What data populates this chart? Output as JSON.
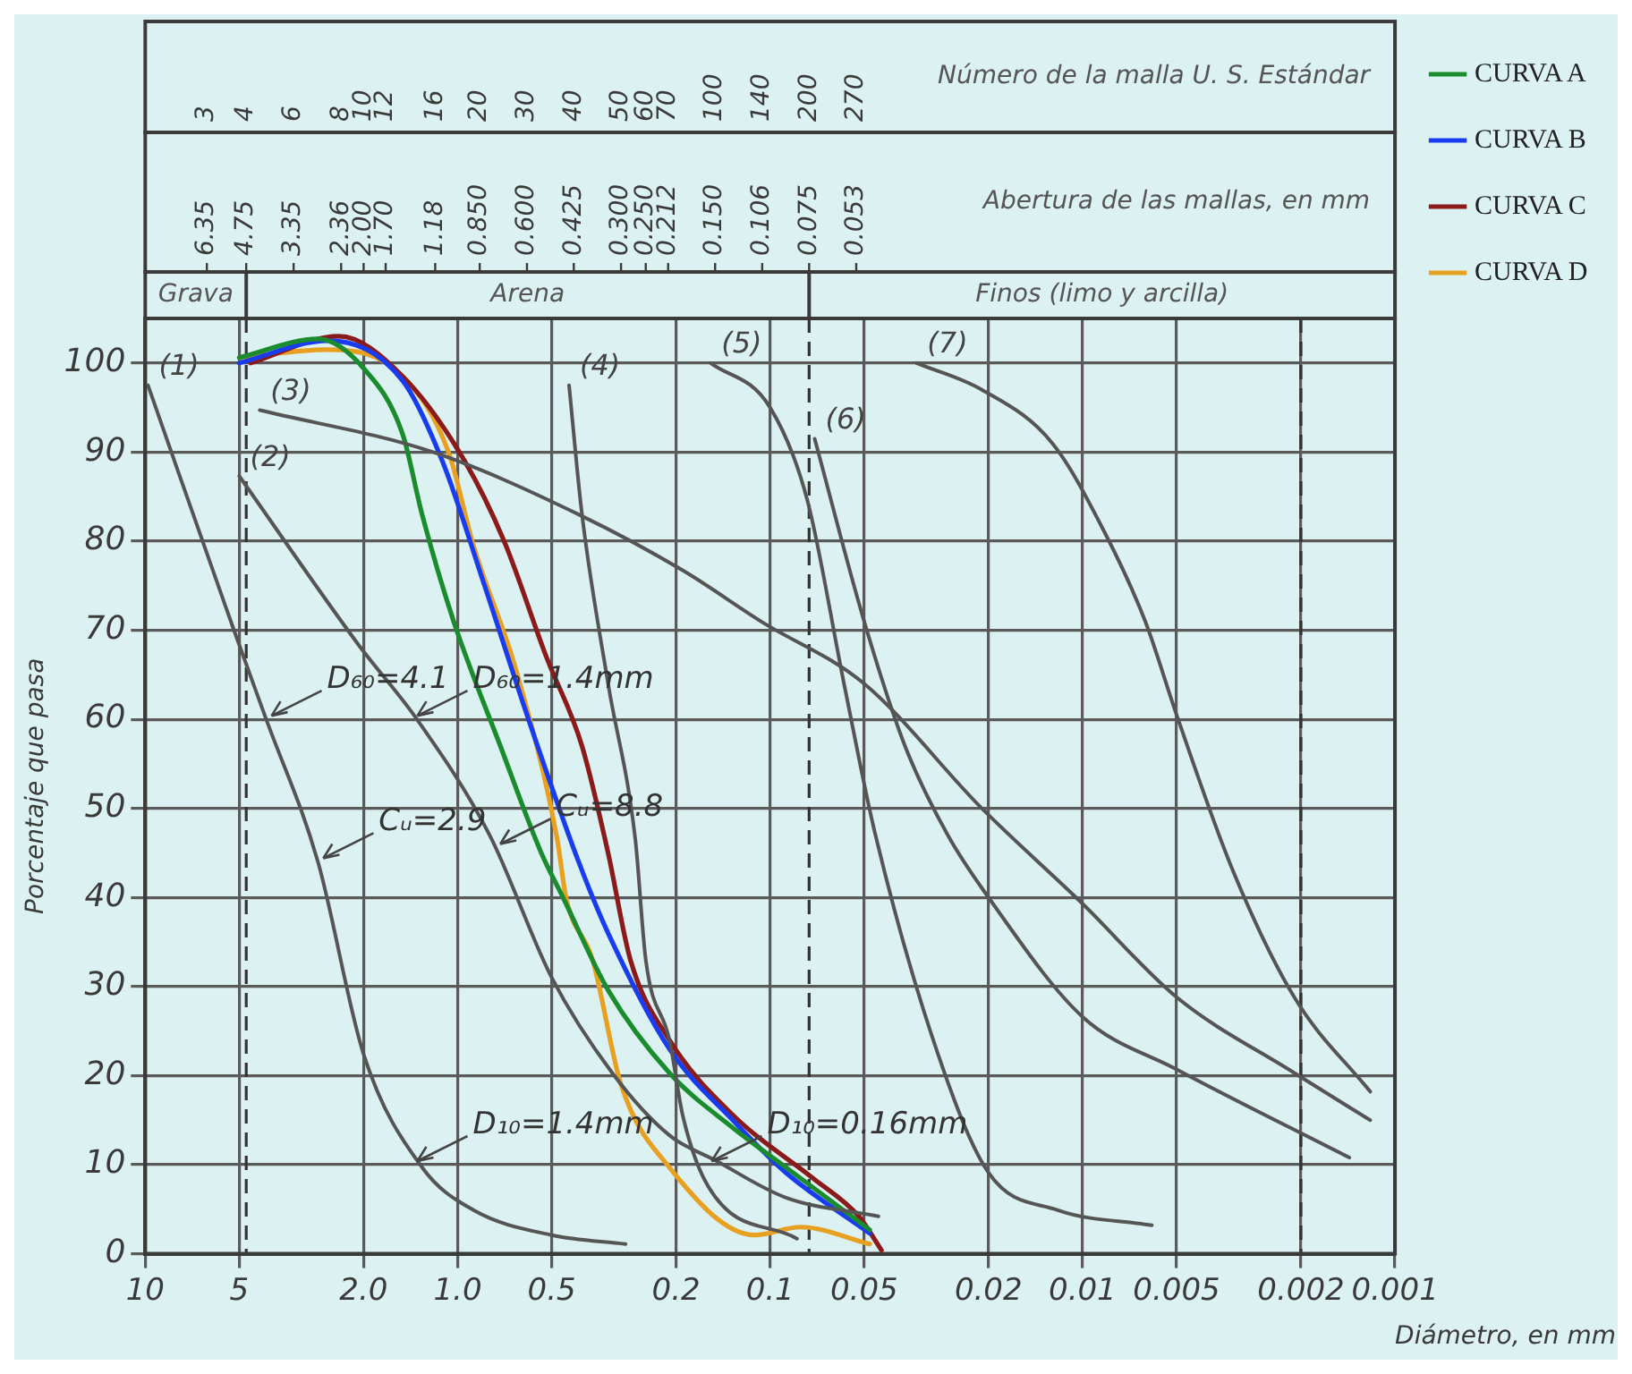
{
  "chart_data": {
    "type": "line",
    "xlabel": "Diámetro, en mm",
    "ylabel": "Porcentaje que pasa",
    "log": "x",
    "grid": true,
    "legend": "right",
    "line_style": "solid",
    "marker": "none",
    "xlim": [
      10,
      0.001
    ],
    "xticks": [
      10,
      5,
      {
        "value": 2,
        "label": "2.0"
      },
      {
        "value": 1,
        "label": "1.0"
      },
      0.5,
      0.2,
      0.1,
      0.05,
      0.02,
      0.01,
      0.005,
      0.002,
      0.001
    ],
    "ylim": [
      0,
      105
    ],
    "yticks": [
      0,
      10,
      20,
      30,
      40,
      50,
      60,
      70,
      80,
      90,
      100
    ],
    "ref_lines": [
      {
        "axis": "x",
        "value": 4.75,
        "line_style": "dashed"
      },
      {
        "axis": "x",
        "value": 0.075,
        "line_style": "dashed"
      },
      {
        "axis": "x",
        "value": 0.002,
        "line_style": "dashed"
      }
    ],
    "annotations": [
      "Grava",
      "Arena",
      "Finos (limo y arcilla)",
      "Número de la malla U. S. Estándar",
      "3",
      "4",
      "6",
      "8",
      "10",
      "12",
      "16",
      "20",
      "30",
      "40",
      "50",
      "60",
      "70",
      "100",
      "140",
      "200",
      "270",
      "Abertura de las mallas, en mm",
      "6.35",
      "4.75",
      "3.35",
      "2.36",
      "2.00",
      "1.70",
      "1.18",
      "0.850",
      "0.600",
      "0.425",
      "0.300",
      "0.250",
      "0.212",
      "0.150",
      "0.106",
      "0.075",
      "0.053",
      {
        "text": "D₆₀=4.1",
        "x": 4.1,
        "y": 60
      },
      {
        "text": "Cᵤ=2.9",
        "x": 2.8,
        "y": 44
      },
      {
        "text": "D₁₀=1.4mm",
        "x": 1.4,
        "y": 10
      },
      {
        "text": "D₆₀=1.4mm",
        "x": 1.4,
        "y": 60
      },
      {
        "text": "Cᵤ=8.8",
        "x": 0.76,
        "y": 45.6
      },
      {
        "text": "D₁₀=0.16mm",
        "x": 0.16,
        "y": 10
      }
    ],
    "series": [
      {
        "name": "(1)",
        "color": "#555555",
        "x": [
          9.8,
          5.2,
          4.1,
          2.8,
          2,
          1.3,
          0.89,
          0.5,
          0.29
        ],
        "values": [
          97.5,
          70,
          60,
          44,
          22.4,
          9.7,
          4.9,
          2.1,
          1.1
        ]
      },
      {
        "name": "(2)",
        "color": "#555555",
        "x": [
          5,
          2.07,
          1.35,
          0.79,
          0.5,
          0.32,
          0.21,
          0.15,
          0.089,
          0.045
        ],
        "values": [
          87.3,
          68.3,
          60,
          47,
          31,
          20.3,
          13.3,
          10.5,
          6.3,
          4.2
        ]
      },
      {
        "name": "(3)",
        "color": "#555555",
        "x": [
          4.3,
          1.2,
          0.41,
          0.19,
          0.107,
          0.05,
          0.021,
          0.01,
          0.005,
          0.0021,
          0.0012
        ],
        "values": [
          94.7,
          90,
          83,
          76.7,
          71,
          64,
          50,
          39.3,
          28.8,
          20.3,
          15
        ]
      },
      {
        "name": "(4)",
        "color": "#555555",
        "x": [
          0.44,
          0.4,
          0.33,
          0.27,
          0.25,
          0.21,
          0.19,
          0.158,
          0.082
        ],
        "values": [
          97.5,
          83,
          64,
          46.5,
          33,
          24,
          15.4,
          7.6,
          1.7
        ]
      },
      {
        "name": "(5)",
        "color": "#555555",
        "x": [
          0.155,
          0.1,
          0.076,
          0.058,
          0.046,
          0.029,
          0.02,
          0.012,
          0.006
        ],
        "values": [
          100,
          95,
          84.6,
          64,
          47,
          22.4,
          9.1,
          4.9,
          3.2
        ]
      },
      {
        "name": "(6)",
        "color": "#555555",
        "x": [
          0.072,
          0.05,
          0.037,
          0.027,
          0.02,
          0.01,
          0.005,
          0.0014
        ],
        "values": [
          91.5,
          71,
          57,
          47,
          40,
          26.6,
          20.7,
          10.8
        ]
      },
      {
        "name": "(7)",
        "color": "#555555",
        "x": [
          0.034,
          0.021,
          0.0125,
          0.0085,
          0.0063,
          0.005,
          0.0033,
          0.0021,
          0.0012
        ],
        "values": [
          100,
          97,
          91,
          81,
          71,
          60.5,
          43,
          28.8,
          18.2
        ]
      },
      {
        "name": "CURVA A",
        "color": "#1a8c2e",
        "x": [
          5,
          2.8,
          2,
          1.5,
          1.3,
          1.03,
          0.73,
          0.54,
          0.46,
          0.33,
          0.21,
          0.13,
          0.089,
          0.048
        ],
        "values": [
          100.6,
          102.7,
          99.4,
          92,
          83,
          71,
          57,
          45,
          40,
          29.6,
          20.3,
          14,
          9.7,
          2.7
        ]
      },
      {
        "name": "CURVA B",
        "color": "#1a3cf0",
        "x": [
          5,
          2.6,
          1.5,
          1.12,
          0.82,
          0.6,
          0.41,
          0.33,
          0.21,
          0.13,
          0.089,
          0.048
        ],
        "values": [
          100,
          102.5,
          98,
          89,
          75,
          60.5,
          44,
          36,
          23,
          14.8,
          9.1,
          2.3
        ]
      },
      {
        "name": "CURVA C",
        "color": "#8b1a1a",
        "x": [
          4.6,
          2.4,
          1.5,
          0.95,
          0.71,
          0.52,
          0.4,
          0.33,
          0.28,
          0.21,
          0.13,
          0.073,
          0.052,
          0.044
        ],
        "values": [
          100,
          103,
          98.5,
          89,
          80,
          67,
          57,
          45,
          33,
          24,
          15.4,
          8.5,
          4.2,
          0.4
        ]
      },
      {
        "name": "CURVA D",
        "color": "#e8a020",
        "x": [
          5,
          2.6,
          1.5,
          1.07,
          0.89,
          0.65,
          0.48,
          0.45,
          0.37,
          0.3,
          0.21,
          0.112,
          0.08,
          0.048
        ],
        "values": [
          100.6,
          101.5,
          98.5,
          90,
          79.5,
          65.5,
          46.5,
          40,
          33,
          19,
          9.7,
          2.1,
          3,
          1.1
        ]
      }
    ]
  }
}
